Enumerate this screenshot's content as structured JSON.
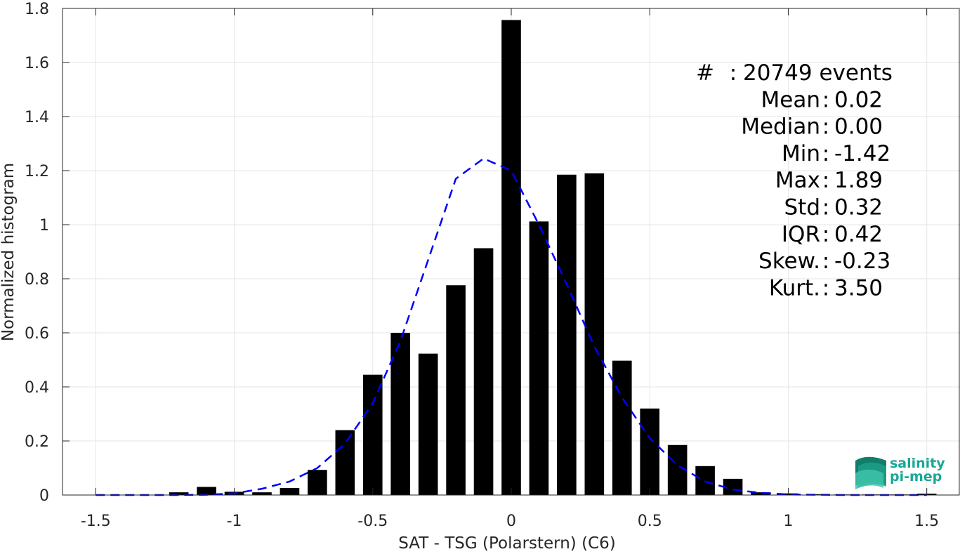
{
  "chart_data": {
    "type": "bar",
    "xlabel": "SAT - TSG (Polarstern) (C6)",
    "ylabel": "Normalized histogram",
    "xlim": [
      -1.62,
      1.62
    ],
    "ylim": [
      0,
      1.8
    ],
    "xticks": [
      -1.5,
      -1,
      -0.5,
      0,
      0.5,
      1,
      1.5
    ],
    "xtick_labels": [
      "-1.5",
      "-1",
      "-0.5",
      "0",
      "0.5",
      "1",
      "1.5"
    ],
    "yticks": [
      0,
      0.2,
      0.4,
      0.6,
      0.8,
      1,
      1.2,
      1.4,
      1.6,
      1.8
    ],
    "ytick_labels": [
      "0",
      "0.2",
      "0.4",
      "0.6",
      "0.8",
      "1",
      "1.2",
      "1.4",
      "1.6",
      "1.8"
    ],
    "grid": true,
    "bar_color": "#000000",
    "bar_width": 0.07,
    "bars": {
      "x": [
        -1.2,
        -1.1,
        -1.0,
        -0.9,
        -0.8,
        -0.7,
        -0.6,
        -0.5,
        -0.4,
        -0.3,
        -0.2,
        -0.1,
        0.0,
        0.1,
        0.2,
        0.3,
        0.4,
        0.5,
        0.6,
        0.7,
        0.8,
        0.9,
        1.0,
        1.1,
        1.2,
        1.3,
        1.4,
        1.5
      ],
      "values": [
        0.01,
        0.03,
        0.012,
        0.01,
        0.026,
        0.093,
        0.24,
        0.445,
        0.6,
        0.523,
        0.776,
        0.913,
        1.757,
        1.012,
        1.185,
        1.19,
        0.497,
        0.32,
        0.185,
        0.107,
        0.06,
        0.01,
        0.006,
        0.003,
        0.002,
        0.002,
        0.002,
        0.005
      ]
    },
    "fit": {
      "style": "dashed",
      "color": "#0000ff",
      "x": [
        -1.5,
        -1.4,
        -1.3,
        -1.2,
        -1.1,
        -1.0,
        -0.9,
        -0.8,
        -0.7,
        -0.6,
        -0.5,
        -0.4,
        -0.3,
        -0.2,
        -0.1,
        0.0,
        0.1,
        0.2,
        0.3,
        0.4,
        0.5,
        0.6,
        0.7,
        0.8,
        0.9,
        1.0,
        1.1,
        1.2,
        1.3,
        1.4,
        1.5
      ],
      "y": [
        0.0,
        0.0,
        0.0,
        0.0,
        0.001,
        0.006,
        0.023,
        0.05,
        0.1,
        0.19,
        0.34,
        0.57,
        0.87,
        1.17,
        1.245,
        1.2,
        1.0,
        0.78,
        0.55,
        0.36,
        0.21,
        0.11,
        0.05,
        0.02,
        0.008,
        0.002,
        0.001,
        0.0,
        0.0,
        0.0,
        0.0
      ]
    },
    "stats": [
      {
        "label": "#  ",
        "value": "20749 events"
      },
      {
        "label": "Mean",
        "value": "0.02"
      },
      {
        "label": "Median",
        "value": "0.00"
      },
      {
        "label": "Min",
        "value": "-1.42"
      },
      {
        "label": "Max",
        "value": "1.89"
      },
      {
        "label": "Std",
        "value": "0.32"
      },
      {
        "label": "IQR",
        "value": "0.42"
      },
      {
        "label": "Skew.",
        "value": "-0.23"
      },
      {
        "label": "Kurt.",
        "value": "3.50"
      }
    ]
  },
  "logo": {
    "line1": "salinity",
    "line2": "pi-mep",
    "color": "#1aa894"
  }
}
